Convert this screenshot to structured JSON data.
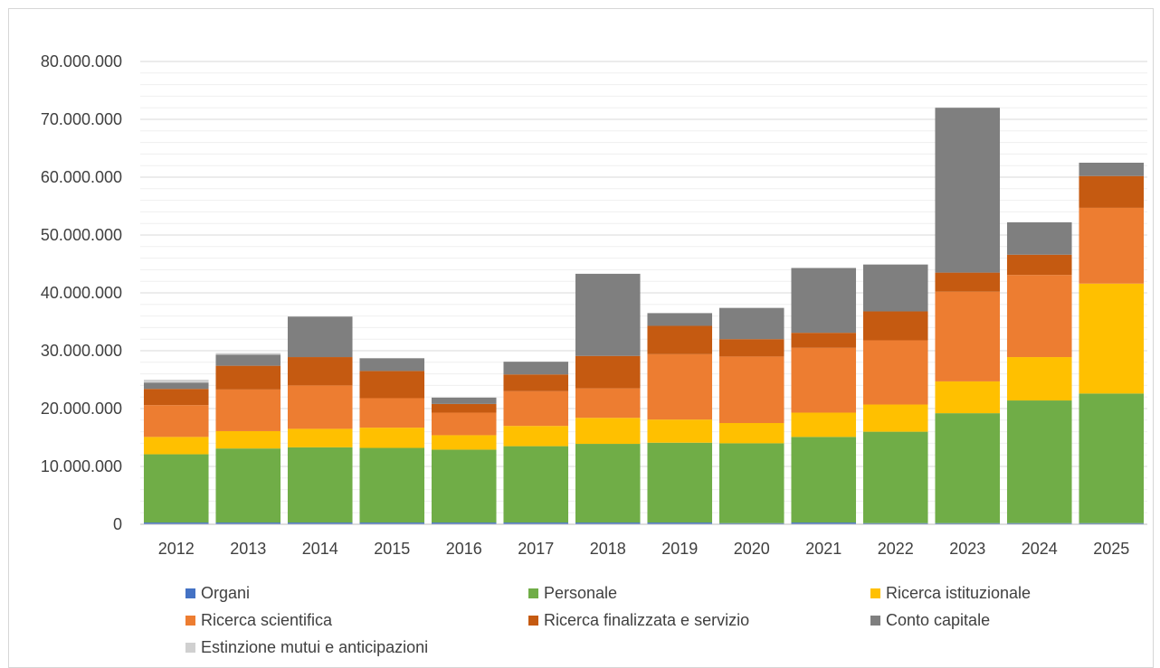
{
  "chart_data": {
    "type": "bar",
    "stacked": true,
    "categories": [
      "2012",
      "2013",
      "2014",
      "2015",
      "2016",
      "2017",
      "2018",
      "2019",
      "2020",
      "2021",
      "2022",
      "2023",
      "2024",
      "2025"
    ],
    "ylim": [
      0,
      80000000
    ],
    "yticks": [
      0,
      10000000,
      20000000,
      30000000,
      40000000,
      50000000,
      60000000,
      70000000,
      80000000
    ],
    "ytick_labels": [
      "0",
      "10.000.000",
      "20.000.000",
      "30.000.000",
      "40.000.000",
      "50.000.000",
      "60.000.000",
      "70.000.000",
      "80.000.000"
    ],
    "grid": "major and minor horizontal",
    "legend_position": "bottom",
    "series": [
      {
        "name": "Organi",
        "color": "#4472C4",
        "values": [
          300000,
          300000,
          300000,
          300000,
          300000,
          300000,
          300000,
          300000,
          200000,
          300000,
          200000,
          200000,
          200000,
          200000
        ]
      },
      {
        "name": "Personale",
        "color": "#70AD47",
        "values": [
          11800000,
          12800000,
          13000000,
          12900000,
          12600000,
          13200000,
          13600000,
          13800000,
          13800000,
          14800000,
          15800000,
          19000000,
          21200000,
          22400000
        ]
      },
      {
        "name": "Ricerca istituzionale",
        "color": "#FFC000",
        "values": [
          3000000,
          3000000,
          3200000,
          3500000,
          2500000,
          3500000,
          4500000,
          4000000,
          3500000,
          4200000,
          4700000,
          5500000,
          7500000,
          19000000
        ]
      },
      {
        "name": "Ricerca scientifica",
        "color": "#ED7D31",
        "values": [
          5500000,
          7200000,
          7500000,
          5100000,
          3900000,
          6000000,
          5100000,
          11300000,
          11500000,
          11200000,
          11100000,
          15500000,
          14200000,
          13100000
        ]
      },
      {
        "name": "Ricerca finalizzata e servizio",
        "color": "#C55A11",
        "values": [
          2800000,
          4100000,
          4900000,
          4700000,
          1500000,
          2900000,
          5600000,
          4900000,
          3000000,
          2600000,
          5000000,
          3300000,
          3500000,
          5500000
        ]
      },
      {
        "name": "Conto capitale",
        "color": "#7F7F7F",
        "values": [
          1100000,
          1900000,
          7000000,
          2200000,
          1100000,
          2200000,
          14200000,
          2200000,
          5400000,
          11200000,
          8100000,
          28500000,
          5600000,
          2300000
        ]
      },
      {
        "name": "Estinzione mutui e anticipazioni",
        "color": "#D0D0D0",
        "values": [
          500000,
          300000,
          0,
          0,
          0,
          0,
          0,
          0,
          0,
          0,
          0,
          0,
          0,
          0
        ]
      }
    ]
  }
}
